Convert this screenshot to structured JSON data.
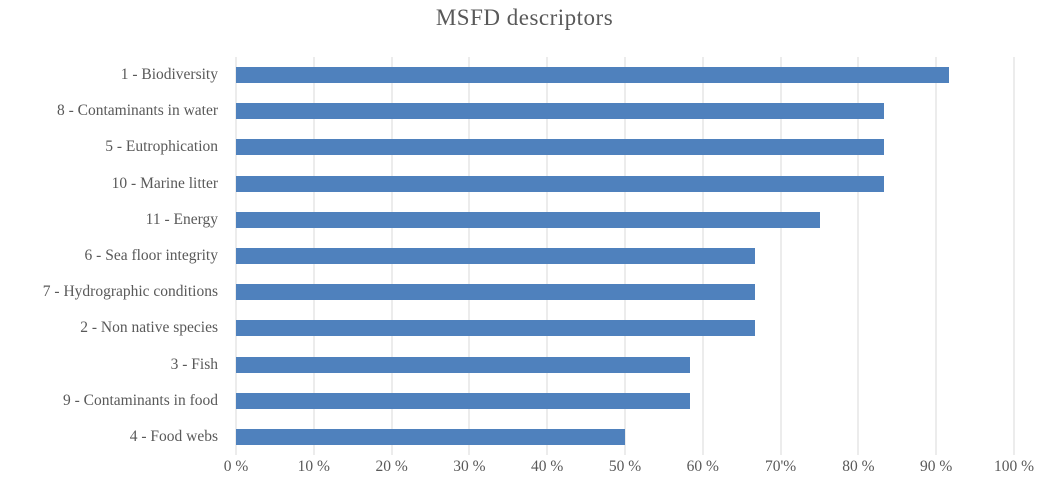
{
  "chart_data": {
    "type": "bar",
    "orientation": "horizontal",
    "title": "MSFD descriptors",
    "categories": [
      "1 - Biodiversity",
      "8 - Contaminants in water",
      "5 - Eutrophication",
      "10 - Marine litter",
      "11 - Energy",
      "6 - Sea floor integrity",
      "7 - Hydrographic conditions",
      "2 - Non native species",
      "3 - Fish",
      "9 - Contaminants in food",
      "4 - Food webs"
    ],
    "values": [
      91.7,
      83.3,
      83.3,
      83.3,
      75.0,
      66.7,
      66.7,
      66.7,
      58.3,
      58.3,
      50.0
    ],
    "value_unit": "%",
    "xlabel": "",
    "ylabel": "",
    "xlim": [
      0,
      100
    ],
    "xtick_values": [
      0,
      10,
      20,
      30,
      40,
      50,
      60,
      70,
      80,
      90,
      100
    ],
    "xtick_labels": [
      "0 %",
      "10 %",
      "20 %",
      "30 %",
      "40 %",
      "50 %",
      "60 %",
      "70'%",
      "80 %",
      "90 %",
      "100 %"
    ],
    "grid": "vertical",
    "legend": "none",
    "colors": {
      "bar": "#4F81BD",
      "gridline": "#D9D9D9",
      "text": "#595959",
      "background": "#FFFFFF"
    }
  }
}
